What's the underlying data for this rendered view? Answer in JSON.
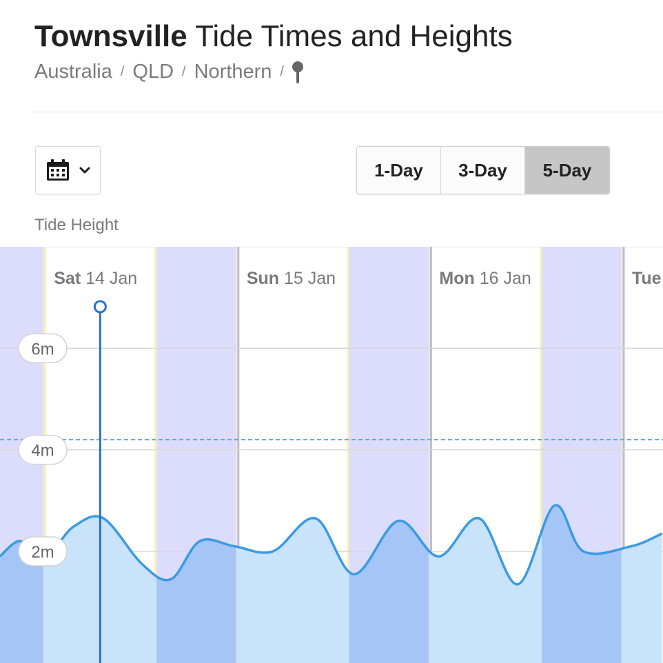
{
  "header": {
    "city": "Townsville",
    "title_rest": " Tide Times and Heights",
    "breadcrumb": [
      "Australia",
      "QLD",
      "Northern"
    ],
    "separator": "/"
  },
  "controls": {
    "calendar_icon": "calendar-icon",
    "dropdown_icon": "chevron-down-icon",
    "range_options": [
      {
        "label": "1-Day",
        "active": false
      },
      {
        "label": "3-Day",
        "active": false
      },
      {
        "label": "5-Day",
        "active": true
      }
    ]
  },
  "chart_label": "Tide Height",
  "chart_data": {
    "type": "area",
    "ylabel": "Tide Height",
    "unit": "m",
    "y_ticks": [
      {
        "value": 2,
        "label": "2m"
      },
      {
        "value": 4,
        "label": "4m"
      },
      {
        "value": 6,
        "label": "6m"
      }
    ],
    "ylim": [
      -0.2,
      8.0
    ],
    "day_labels": [
      {
        "weekday": "Sat",
        "date": "14 Jan",
        "day_index": 0
      },
      {
        "weekday": "Sun",
        "date": "15 Jan",
        "day_index": 1
      },
      {
        "weekday": "Mon",
        "date": "16 Jan",
        "day_index": 2
      },
      {
        "weekday": "Tue",
        "date": "",
        "day_index": 3
      }
    ],
    "x_range_days": [
      -0.237,
      3.204
    ],
    "night_periods_days": [
      [
        -0.25,
        -0.012
      ],
      [
        0.576,
        0.988
      ],
      [
        1.575,
        1.988
      ],
      [
        2.575,
        2.988
      ]
    ],
    "current_time_days": 0.283,
    "reference_level_m": 4.2,
    "reference_style": "dashed",
    "series": [
      {
        "x_days": [
          -0.237,
          -0.14,
          -0.04,
          0.05,
          0.15,
          0.3,
          0.5,
          0.65,
          0.8,
          0.98,
          1.18,
          1.4,
          1.6,
          1.83,
          2.04,
          2.25,
          2.45,
          2.64,
          2.79,
          3.04,
          3.2
        ],
        "height_m": [
          1.9,
          2.2,
          2.0,
          2.1,
          2.5,
          2.65,
          1.75,
          1.45,
          2.2,
          2.1,
          2.0,
          2.65,
          1.55,
          2.6,
          1.9,
          2.65,
          1.35,
          2.9,
          2.0,
          2.1,
          2.35
        ]
      }
    ],
    "colors": {
      "line": "#3a9ae4",
      "fill_day": "#c9e3fa",
      "fill_night": "#a5c5f7",
      "night_band": "#dcdcfc",
      "dawn_dusk_edge": "#fbefb8",
      "current_marker": "#2a6fd6",
      "reference_line": "#5aa9e6",
      "grid": "#d8d8d8"
    }
  }
}
